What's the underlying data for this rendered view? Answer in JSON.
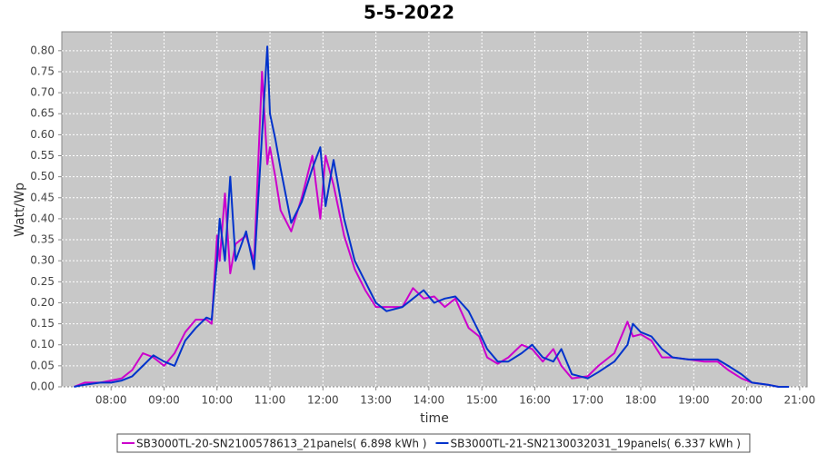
{
  "chart_data": {
    "type": "line",
    "title": "5-5-2022",
    "x_label": "time",
    "y_label": "Watt/Wp",
    "x": [
      7.3,
      7.5,
      7.8,
      8.0,
      8.2,
      8.4,
      8.6,
      8.8,
      9.0,
      9.2,
      9.4,
      9.6,
      9.8,
      9.9,
      10.0,
      10.05,
      10.15,
      10.25,
      10.35,
      10.55,
      10.7,
      10.85,
      10.95,
      11.0,
      11.1,
      11.2,
      11.4,
      11.6,
      11.8,
      11.95,
      12.05,
      12.2,
      12.4,
      12.6,
      12.8,
      13.0,
      13.2,
      13.5,
      13.7,
      13.9,
      14.1,
      14.3,
      14.5,
      14.75,
      14.95,
      15.1,
      15.3,
      15.5,
      15.75,
      15.95,
      16.15,
      16.35,
      16.5,
      16.7,
      17.0,
      17.2,
      17.5,
      17.75,
      17.85,
      18.0,
      18.2,
      18.4,
      18.6,
      18.9,
      19.2,
      19.45,
      19.65,
      19.9,
      20.1,
      20.4,
      20.6,
      20.8
    ],
    "series": [
      {
        "name": "SB3000TL-20-SN2100578613_21panels( 6.898 kWh )",
        "color": "#cc00cc",
        "values": [
          0.0,
          0.01,
          0.01,
          0.015,
          0.02,
          0.04,
          0.08,
          0.07,
          0.05,
          0.08,
          0.13,
          0.16,
          0.16,
          0.15,
          0.36,
          0.3,
          0.46,
          0.27,
          0.34,
          0.36,
          0.3,
          0.75,
          0.53,
          0.57,
          0.5,
          0.42,
          0.37,
          0.45,
          0.55,
          0.4,
          0.55,
          0.48,
          0.36,
          0.28,
          0.23,
          0.19,
          0.19,
          0.19,
          0.235,
          0.21,
          0.215,
          0.19,
          0.21,
          0.14,
          0.12,
          0.07,
          0.055,
          0.07,
          0.1,
          0.09,
          0.06,
          0.09,
          0.05,
          0.02,
          0.025,
          0.05,
          0.08,
          0.155,
          0.12,
          0.125,
          0.11,
          0.07,
          0.07,
          0.065,
          0.06,
          0.06,
          0.04,
          0.02,
          0.01,
          0.005,
          0.0,
          null
        ]
      },
      {
        "name": "SB3000TL-21-SN2130032031_19panels( 6.337 kWh )",
        "color": "#0033cc",
        "values": [
          0.0,
          0.005,
          0.01,
          0.01,
          0.015,
          0.025,
          0.05,
          0.075,
          0.06,
          0.05,
          0.11,
          0.14,
          0.165,
          0.16,
          0.3,
          0.4,
          0.3,
          0.5,
          0.3,
          0.37,
          0.28,
          0.6,
          0.81,
          0.65,
          0.59,
          0.52,
          0.39,
          0.44,
          0.52,
          0.57,
          0.43,
          0.54,
          0.4,
          0.3,
          0.25,
          0.2,
          0.18,
          0.19,
          0.21,
          0.23,
          0.2,
          0.21,
          0.215,
          0.18,
          0.13,
          0.09,
          0.06,
          0.06,
          0.08,
          0.1,
          0.07,
          0.06,
          0.09,
          0.03,
          0.02,
          0.035,
          0.06,
          0.1,
          0.15,
          0.13,
          0.12,
          0.09,
          0.07,
          0.065,
          0.065,
          0.065,
          0.05,
          0.03,
          0.01,
          0.005,
          0.0,
          0.0
        ]
      }
    ],
    "xlim": [
      7.07,
      21.14
    ],
    "ylim": [
      0,
      0.845
    ],
    "xticks": [
      {
        "value": 8,
        "label": "08:00"
      },
      {
        "value": 9,
        "label": "09:00"
      },
      {
        "value": 10,
        "label": "10:00"
      },
      {
        "value": 11,
        "label": "11:00"
      },
      {
        "value": 12,
        "label": "12:00"
      },
      {
        "value": 13,
        "label": "13:00"
      },
      {
        "value": 14,
        "label": "14:00"
      },
      {
        "value": 15,
        "label": "15:00"
      },
      {
        "value": 16,
        "label": "16:00"
      },
      {
        "value": 17,
        "label": "17:00"
      },
      {
        "value": 18,
        "label": "18:00"
      },
      {
        "value": 19,
        "label": "19:00"
      },
      {
        "value": 20,
        "label": "20:00"
      },
      {
        "value": 21,
        "label": "21:00"
      }
    ],
    "yticks": [
      {
        "value": 0,
        "label": "0.00"
      },
      {
        "value": 0.05,
        "label": "0.05"
      },
      {
        "value": 0.1,
        "label": "0.10"
      },
      {
        "value": 0.15,
        "label": "0.15"
      },
      {
        "value": 0.2,
        "label": "0.20"
      },
      {
        "value": 0.25,
        "label": "0.25"
      },
      {
        "value": 0.3,
        "label": "0.30"
      },
      {
        "value": 0.35,
        "label": "0.35"
      },
      {
        "value": 0.4,
        "label": "0.40"
      },
      {
        "value": 0.45,
        "label": "0.45"
      },
      {
        "value": 0.5,
        "label": "0.50"
      },
      {
        "value": 0.55,
        "label": "0.55"
      },
      {
        "value": 0.6,
        "label": "0.60"
      },
      {
        "value": 0.65,
        "label": "0.65"
      },
      {
        "value": 0.7,
        "label": "0.70"
      },
      {
        "value": 0.75,
        "label": "0.75"
      },
      {
        "value": 0.8,
        "label": "0.80"
      }
    ],
    "grid": true
  }
}
